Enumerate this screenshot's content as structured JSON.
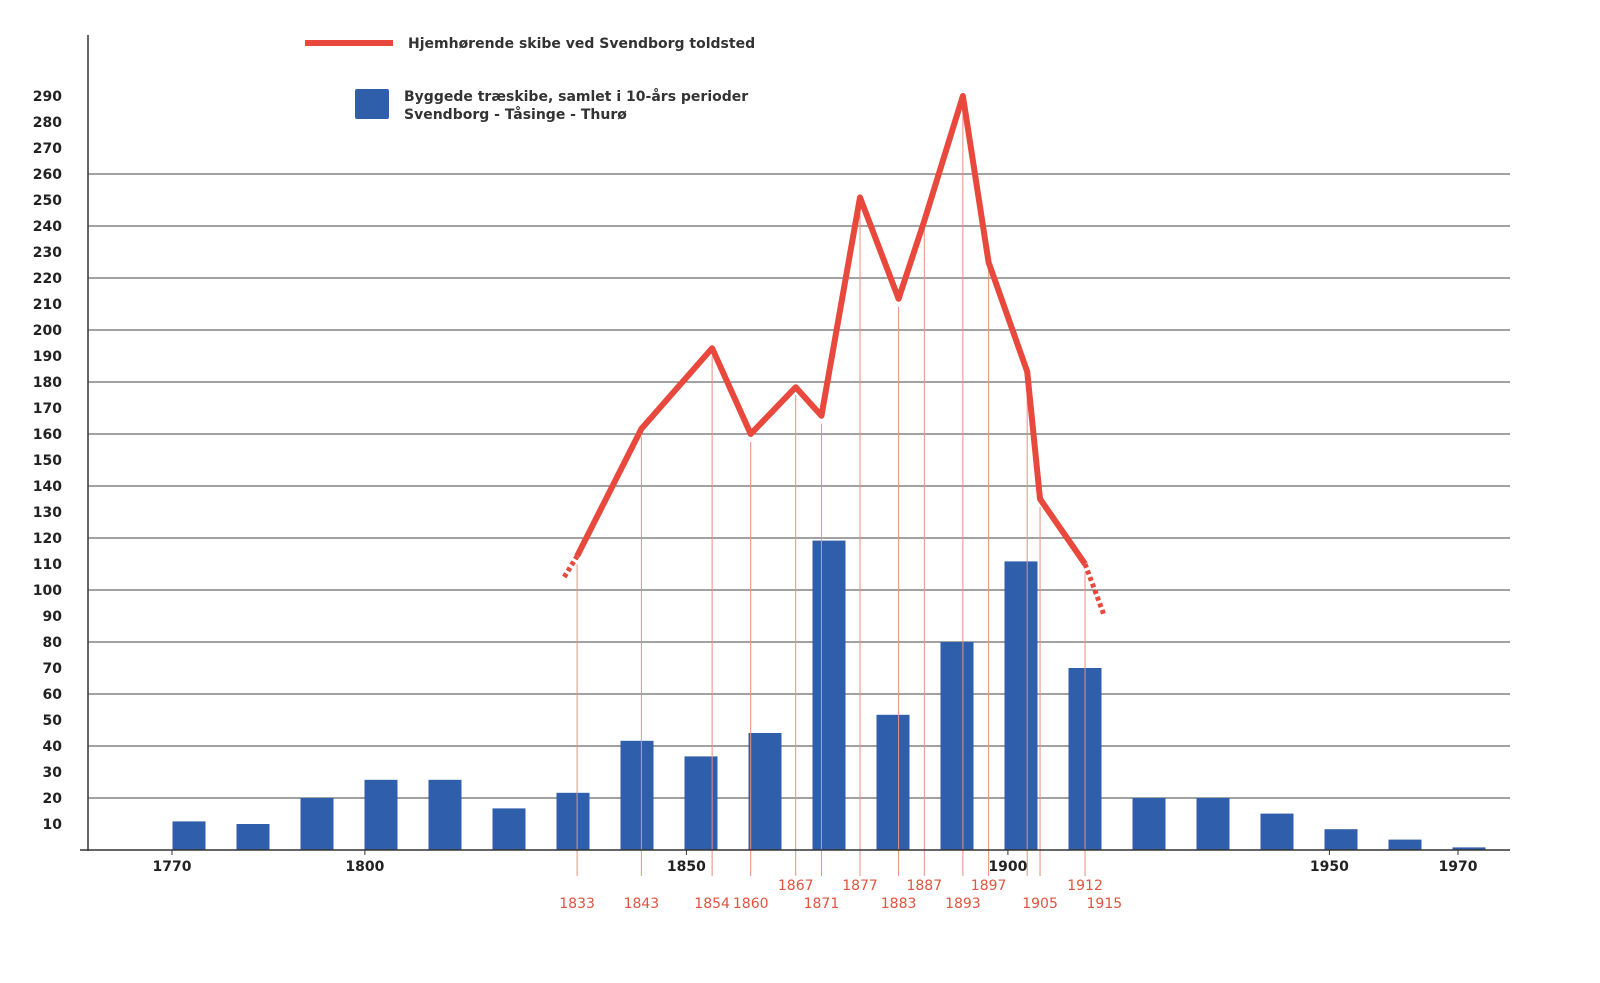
{
  "chart_data": {
    "type": "bar+line",
    "title": "",
    "legend": [
      {
        "label": "Hjemhørende skibe ved Svendborg toldsted",
        "type": "line",
        "color": "#e8493c"
      },
      {
        "label": "Byggede træskibe, samlet i 10-års perioder",
        "label2": "Svendborg - Tåsinge - Thurø",
        "type": "bar",
        "color": "#2f5faa"
      }
    ],
    "legend_placement": "top-left",
    "ylim": [
      0,
      290
    ],
    "yticks": [
      290,
      280,
      270,
      260,
      250,
      240,
      230,
      220,
      210,
      200,
      190,
      180,
      170,
      160,
      150,
      140,
      130,
      120,
      110,
      100,
      90,
      80,
      70,
      60,
      50,
      40,
      30,
      20,
      10
    ],
    "gridlines": [
      20,
      40,
      60,
      80,
      100,
      120,
      140,
      160,
      180,
      200,
      220,
      240,
      260
    ],
    "xticks": [
      1770,
      1800,
      1850,
      1900,
      1950,
      1970
    ],
    "bars": {
      "name": "Byggede træskibe, samlet i 10-års perioder",
      "periods": [
        1770,
        1780,
        1790,
        1800,
        1810,
        1820,
        1830,
        1840,
        1850,
        1860,
        1870,
        1880,
        1890,
        1900,
        1910,
        1920,
        1930,
        1940,
        1950,
        1960,
        1970
      ],
      "values": [
        11,
        10,
        20,
        27,
        27,
        16,
        22,
        42,
        36,
        45,
        119,
        52,
        80,
        111,
        70,
        20,
        20,
        14,
        8,
        4,
        1
      ]
    },
    "line": {
      "name": "Hjemhørende skibe ved Svendborg toldsted",
      "x": [
        1833,
        1843,
        1854,
        1860,
        1867,
        1871,
        1877,
        1883,
        1887,
        1893,
        1897,
        1903,
        1905,
        1912
      ],
      "y": [
        113,
        162,
        193,
        160,
        178,
        167,
        251,
        212,
        242,
        290,
        226,
        184,
        135,
        110
      ],
      "dashed_start": [
        1831,
        105
      ],
      "dashed_end": [
        1915,
        90
      ]
    },
    "year_labels_upper": [
      "1867",
      "1877",
      "1887",
      "1897",
      "1912"
    ],
    "year_labels_lower": [
      "1833",
      "1843",
      "1854",
      "1860",
      "1871",
      "1883",
      "1893",
      "1905",
      "1915"
    ],
    "year_label_positions_upper": [
      1867,
      1877,
      1887,
      1897,
      1912
    ],
    "year_label_positions_lower": [
      1833,
      1843,
      1854,
      1860,
      1871,
      1883,
      1893,
      1905,
      1915
    ],
    "colors": {
      "bar": "#2f5faa",
      "line": "#e8493c",
      "labels": "#e0533f",
      "grid": "#444444"
    }
  }
}
